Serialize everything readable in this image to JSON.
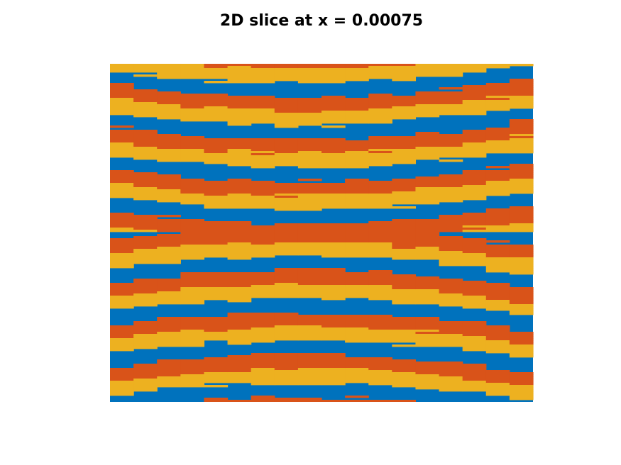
{
  "chart_data": {
    "type": "heatmap",
    "title": "2D slice at x = 0.00075",
    "xlabel": "",
    "ylabel": "",
    "axes_visible": false,
    "grid": false,
    "legend": "none",
    "colormap": [
      "#0072BD",
      "#D95319",
      "#EDB120"
    ],
    "pattern": {
      "description_values": "three-level phase field; bands repeat vertically in order blue, red, yellow",
      "band_repeats": 8,
      "amplitude_fraction": 0.45,
      "center_column_fraction": 0.45,
      "edge_noise_fraction": 0.015,
      "steps_x": 18
    }
  }
}
